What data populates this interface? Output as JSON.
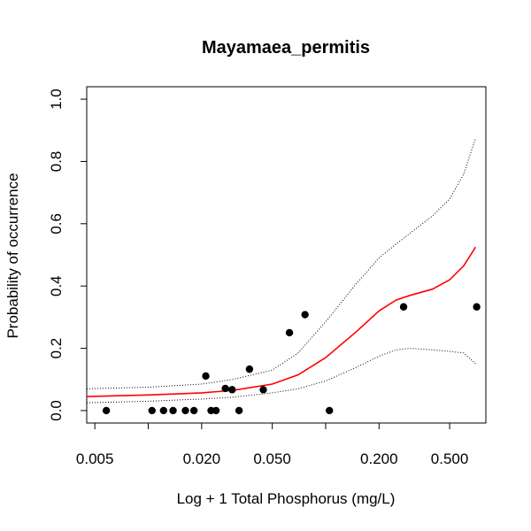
{
  "chart_data": {
    "type": "scatter",
    "title": "Mayamaea_permitis",
    "xlabel": "Log + 1 Total Phosphorus (mg/L)",
    "ylabel": "Probability of occurrence",
    "x_scale": "log",
    "xlim": [
      0.0045,
      0.8
    ],
    "ylim": [
      -0.04,
      1.04
    ],
    "x_ticks": [
      0.005,
      0.01,
      0.02,
      0.05,
      0.1,
      0.2,
      0.5
    ],
    "x_tick_labels": [
      "0.005",
      "",
      "0.020",
      "0.050",
      "",
      "0.200",
      "0.500"
    ],
    "y_ticks": [
      0.0,
      0.2,
      0.4,
      0.6,
      0.8,
      1.0
    ],
    "y_tick_labels": [
      "0.0",
      "0.2",
      "0.4",
      "0.6",
      "0.8",
      "1.0"
    ],
    "colors": {
      "fit": "#ff0000",
      "ci": "#000000",
      "points": "#000000"
    },
    "points": [
      {
        "x": 0.0058,
        "y": 0.0
      },
      {
        "x": 0.0105,
        "y": 0.0
      },
      {
        "x": 0.0122,
        "y": 0.0
      },
      {
        "x": 0.0138,
        "y": 0.0
      },
      {
        "x": 0.0162,
        "y": 0.0
      },
      {
        "x": 0.0181,
        "y": 0.0
      },
      {
        "x": 0.0211,
        "y": 0.111
      },
      {
        "x": 0.0226,
        "y": 0.0
      },
      {
        "x": 0.0241,
        "y": 0.0
      },
      {
        "x": 0.0272,
        "y": 0.071
      },
      {
        "x": 0.0297,
        "y": 0.067
      },
      {
        "x": 0.0325,
        "y": 0.0
      },
      {
        "x": 0.0372,
        "y": 0.133
      },
      {
        "x": 0.0445,
        "y": 0.067
      },
      {
        "x": 0.0625,
        "y": 0.25
      },
      {
        "x": 0.0765,
        "y": 0.308
      },
      {
        "x": 0.105,
        "y": 0.0
      },
      {
        "x": 0.275,
        "y": 0.333
      },
      {
        "x": 0.71,
        "y": 0.333
      }
    ],
    "series": [
      {
        "role": "fit",
        "x": [
          0.0045,
          0.01,
          0.02,
          0.03,
          0.05,
          0.07,
          0.1,
          0.15,
          0.2,
          0.25,
          0.3,
          0.4,
          0.5,
          0.6,
          0.7
        ],
        "y": [
          0.045,
          0.05,
          0.057,
          0.065,
          0.085,
          0.115,
          0.17,
          0.255,
          0.32,
          0.355,
          0.37,
          0.39,
          0.42,
          0.465,
          0.525
        ]
      },
      {
        "role": "upper",
        "x": [
          0.0045,
          0.01,
          0.02,
          0.03,
          0.05,
          0.07,
          0.1,
          0.15,
          0.2,
          0.25,
          0.3,
          0.4,
          0.5,
          0.6,
          0.7
        ],
        "y": [
          0.07,
          0.075,
          0.085,
          0.1,
          0.13,
          0.185,
          0.285,
          0.41,
          0.49,
          0.535,
          0.57,
          0.625,
          0.68,
          0.76,
          0.875
        ]
      },
      {
        "role": "lower",
        "x": [
          0.0045,
          0.01,
          0.02,
          0.03,
          0.05,
          0.07,
          0.1,
          0.15,
          0.2,
          0.25,
          0.3,
          0.4,
          0.5,
          0.6,
          0.7
        ],
        "y": [
          0.025,
          0.03,
          0.037,
          0.043,
          0.057,
          0.07,
          0.095,
          0.14,
          0.175,
          0.195,
          0.2,
          0.195,
          0.19,
          0.185,
          0.15
        ]
      }
    ]
  }
}
